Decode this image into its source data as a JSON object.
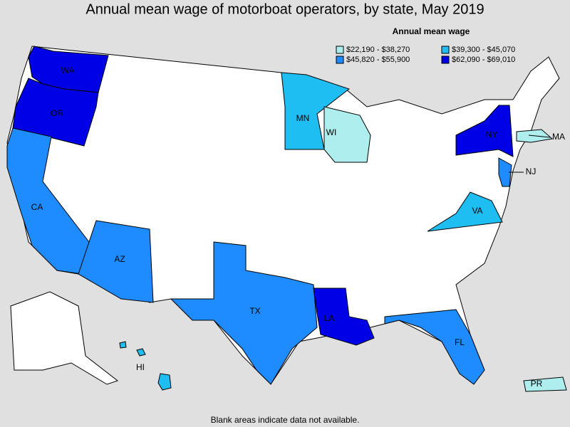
{
  "title": "Annual mean wage of motorboat operators, by state, May 2019",
  "legend": {
    "title": "Annual mean wage",
    "items": [
      {
        "label": "$22,190 - $38,270",
        "color": "#aeeeee"
      },
      {
        "label": "$39,300 - $45,070",
        "color": "#1ebef2"
      },
      {
        "label": "$45,820 - $55,900",
        "color": "#1e8cff"
      },
      {
        "label": "$62,090 - $69,010",
        "color": "#0000e6"
      }
    ]
  },
  "states": [
    {
      "abbr": "WA",
      "color": "#0000e6"
    },
    {
      "abbr": "OR",
      "color": "#0000e6"
    },
    {
      "abbr": "CA",
      "color": "#1e8cff"
    },
    {
      "abbr": "AZ",
      "color": "#1e8cff"
    },
    {
      "abbr": "TX",
      "color": "#1e8cff"
    },
    {
      "abbr": "LA",
      "color": "#0000e6"
    },
    {
      "abbr": "FL",
      "color": "#1e8cff"
    },
    {
      "abbr": "NY",
      "color": "#0000e6"
    },
    {
      "abbr": "NJ",
      "color": "#1e8cff"
    },
    {
      "abbr": "MA",
      "color": "#aeeeee"
    },
    {
      "abbr": "VA",
      "color": "#1ebef2"
    },
    {
      "abbr": "MN",
      "color": "#1ebef2"
    },
    {
      "abbr": "WI",
      "color": "#aeeeee"
    },
    {
      "abbr": "HI",
      "color": "#1ebef2"
    },
    {
      "abbr": "PR",
      "color": "#aeeeee"
    }
  ],
  "footnote": "Blank areas indicate data not available."
}
